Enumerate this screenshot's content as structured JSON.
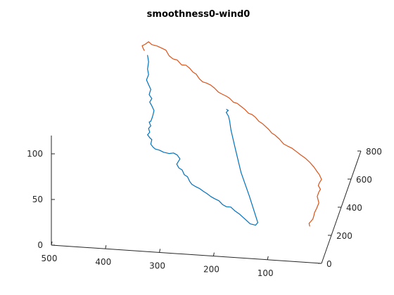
{
  "chart_data": {
    "type": "line",
    "projection": "3d",
    "title": "smoothness0-wind0",
    "grid": false,
    "legend": "none",
    "x_axis": {
      "ticks": [
        500,
        400,
        300,
        200,
        100
      ],
      "range": [
        0,
        500
      ]
    },
    "y_axis": {
      "ticks": [
        0,
        200,
        400,
        600,
        800
      ],
      "range": [
        0,
        800
      ]
    },
    "z_axis": {
      "ticks": [
        0,
        50,
        100
      ],
      "range": [
        0,
        120
      ]
    },
    "series": [
      {
        "color": "#0072BD",
        "points": [
          [
            322,
            0,
            215
          ],
          [
            320,
            0,
            208
          ],
          [
            322,
            0,
            200
          ],
          [
            320,
            0,
            194
          ],
          [
            324,
            0,
            188
          ],
          [
            320,
            0,
            183
          ],
          [
            316,
            0,
            178
          ],
          [
            319,
            0,
            172
          ],
          [
            314,
            0,
            168
          ],
          [
            318,
            0,
            164
          ],
          [
            314,
            0,
            160
          ],
          [
            310,
            0,
            155
          ],
          [
            312,
            0,
            150
          ],
          [
            314,
            0,
            146
          ],
          [
            316,
            0,
            143
          ],
          [
            319,
            0,
            142
          ],
          [
            316,
            0,
            138
          ],
          [
            320,
            0,
            135
          ],
          [
            318,
            0,
            131
          ],
          [
            322,
            0,
            128
          ],
          [
            318,
            0,
            125
          ],
          [
            314,
            0,
            123
          ],
          [
            316,
            0,
            118
          ],
          [
            312,
            0,
            115
          ],
          [
            308,
            0,
            113
          ],
          [
            300,
            0,
            112
          ],
          [
            292,
            0,
            110
          ],
          [
            282,
            0,
            109
          ],
          [
            274,
            0,
            110
          ],
          [
            267,
            0,
            108
          ],
          [
            262,
            0,
            104
          ],
          [
            268,
            0,
            98
          ],
          [
            264,
            0,
            94
          ],
          [
            258,
            0,
            92
          ],
          [
            254,
            0,
            87
          ],
          [
            248,
            0,
            85
          ],
          [
            244,
            0,
            80
          ],
          [
            240,
            0,
            77
          ],
          [
            234,
            0,
            75
          ],
          [
            226,
            0,
            73
          ],
          [
            218,
            0,
            70
          ],
          [
            212,
            0,
            68
          ],
          [
            205,
            0,
            65
          ],
          [
            198,
            0,
            63
          ],
          [
            190,
            0,
            61
          ],
          [
            183,
            0,
            57
          ],
          [
            176,
            0,
            55
          ],
          [
            168,
            0,
            55
          ],
          [
            160,
            0,
            51
          ],
          [
            152,
            0,
            48
          ],
          [
            146,
            0,
            45
          ],
          [
            140,
            0,
            42
          ],
          [
            132,
            0,
            38
          ],
          [
            122,
            0,
            37
          ],
          [
            118,
            0,
            40
          ],
          [
            150,
            180,
            40
          ],
          [
            180,
            340,
            40
          ],
          [
            205,
            500,
            40
          ],
          [
            225,
            630,
            40
          ],
          [
            232,
            680,
            42
          ],
          [
            236,
            700,
            44
          ],
          [
            242,
            720,
            45
          ],
          [
            240,
            740,
            44
          ],
          [
            245,
            760,
            42
          ]
        ]
      },
      {
        "color": "#D95319",
        "points": [
          [
            328,
            0,
            220
          ],
          [
            330,
            0,
            222
          ],
          [
            332,
            0,
            225
          ],
          [
            326,
            0,
            227
          ],
          [
            320,
            0,
            230
          ],
          [
            314,
            0,
            227
          ],
          [
            305,
            0,
            226
          ],
          [
            296,
            0,
            224
          ],
          [
            288,
            0,
            222
          ],
          [
            282,
            0,
            216
          ],
          [
            275,
            0,
            213
          ],
          [
            267,
            0,
            212
          ],
          [
            259,
            0,
            207
          ],
          [
            251,
            0,
            207
          ],
          [
            244,
            0,
            204
          ],
          [
            238,
            0,
            200
          ],
          [
            232,
            0,
            198
          ],
          [
            226,
            0,
            193
          ],
          [
            220,
            0,
            190
          ],
          [
            213,
            0,
            189
          ],
          [
            205,
            0,
            187
          ],
          [
            198,
            0,
            184
          ],
          [
            191,
            0,
            180
          ],
          [
            184,
            0,
            178
          ],
          [
            176,
            0,
            176
          ],
          [
            170,
            0,
            174
          ],
          [
            163,
            0,
            170
          ],
          [
            156,
            0,
            169
          ],
          [
            149,
            0,
            166
          ],
          [
            142,
            0,
            163
          ],
          [
            135,
            0,
            159
          ],
          [
            129,
            0,
            158
          ],
          [
            122,
            0,
            155
          ],
          [
            116,
            0,
            151
          ],
          [
            110,
            0,
            149
          ],
          [
            104,
            0,
            146
          ],
          [
            98,
            0,
            143
          ],
          [
            92,
            0,
            139
          ],
          [
            86,
            0,
            137
          ],
          [
            78,
            0,
            133
          ],
          [
            70,
            0,
            128
          ],
          [
            63,
            0,
            126
          ],
          [
            55,
            0,
            124
          ],
          [
            45,
            0,
            120
          ],
          [
            38,
            0,
            117
          ],
          [
            30,
            0,
            114
          ],
          [
            22,
            0,
            110
          ],
          [
            14,
            0,
            105
          ],
          [
            8,
            0,
            100
          ],
          [
            4,
            0,
            97
          ],
          [
            0,
            0,
            92
          ],
          [
            4,
            0,
            88
          ],
          [
            6,
            0,
            85
          ],
          [
            2,
            0,
            81
          ],
          [
            5,
            0,
            78
          ],
          [
            8,
            0,
            73
          ],
          [
            5,
            0,
            66
          ],
          [
            9,
            0,
            60
          ],
          [
            13,
            0,
            55
          ],
          [
            14,
            0,
            52
          ],
          [
            16,
            0,
            48
          ],
          [
            20,
            0,
            45
          ],
          [
            23,
            0,
            43
          ],
          [
            22,
            0,
            40
          ]
        ]
      }
    ]
  }
}
